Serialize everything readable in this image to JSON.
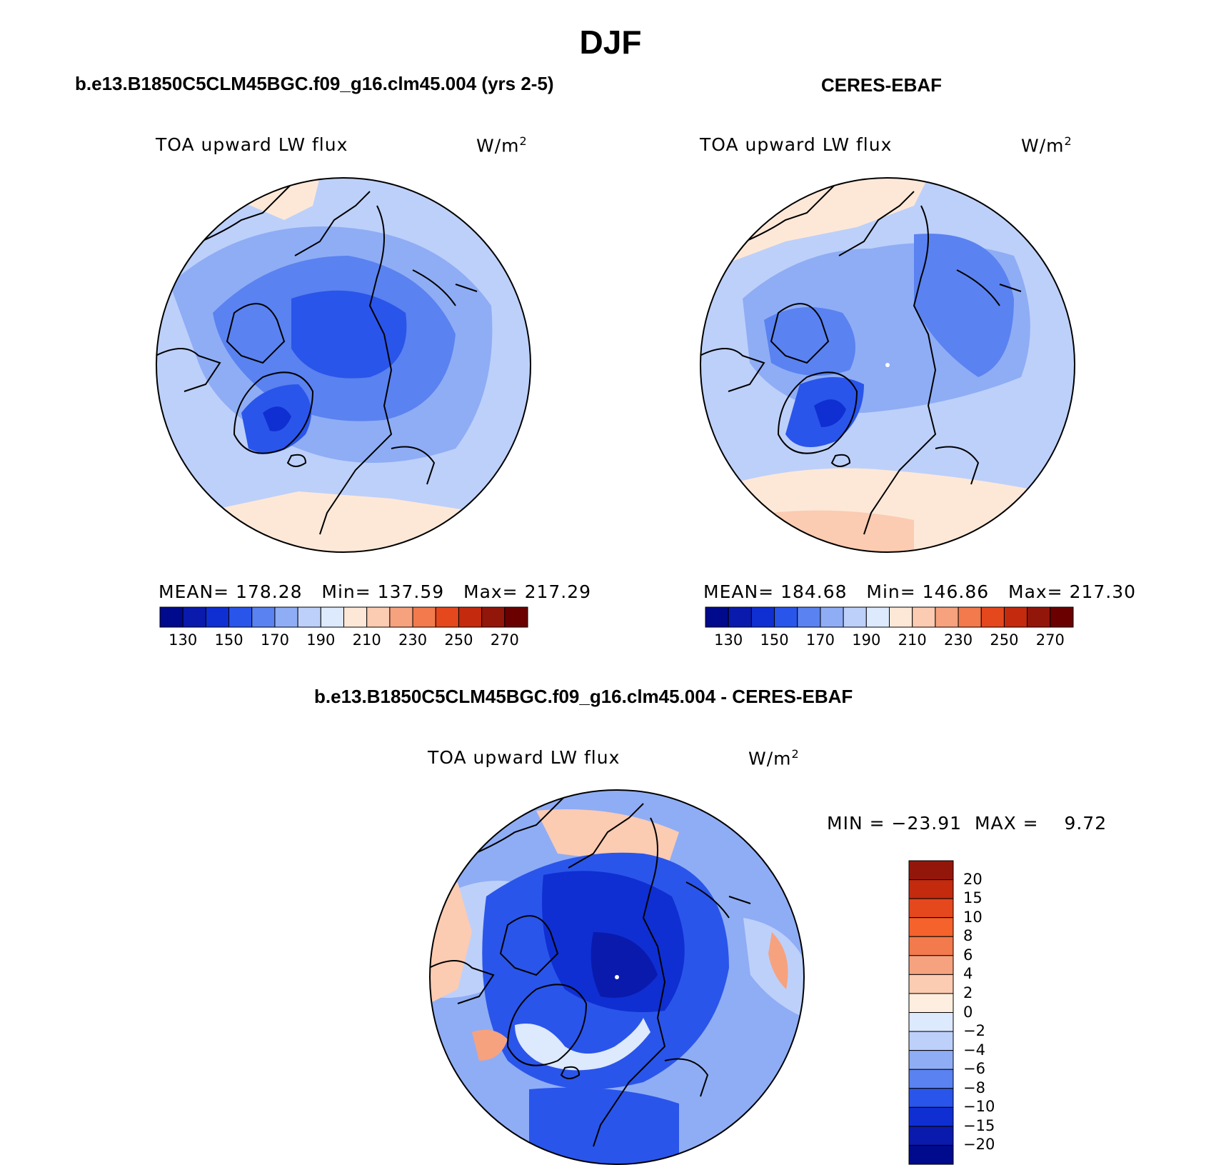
{
  "figure": {
    "title": "DJF"
  },
  "panels": [
    {
      "id": "model",
      "title": "b.e13.B1850C5CLM45BGC.f09_g16.clm45.004 (yrs 2-5)",
      "variable": "TOA upward LW flux",
      "units": "W/m",
      "units_sup": "2",
      "stats": {
        "mean_label": "MEAN=",
        "mean": "178.28",
        "min_label": "Min=",
        "min": "137.59",
        "max_label": "Max=",
        "max": "217.29"
      }
    },
    {
      "id": "obs",
      "title": "CERES-EBAF",
      "variable": "TOA upward LW flux",
      "units": "W/m",
      "units_sup": "2",
      "stats": {
        "mean_label": "MEAN=",
        "mean": "184.68",
        "min_label": "Min=",
        "min": "146.86",
        "max_label": "Max=",
        "max": "217.30"
      }
    },
    {
      "id": "diff",
      "title": "b.e13.B1850C5CLM45BGC.f09_g16.clm45.004 - CERES-EBAF",
      "variable": "TOA upward LW flux",
      "units": "W/m",
      "units_sup": "2",
      "stats": {
        "min_label": "MIN =",
        "min": "−23.91",
        "max_label": "MAX =",
        "max": "9.72"
      }
    }
  ],
  "abs_colorbar": {
    "colors": [
      "#000a8c",
      "#0a1aad",
      "#0f2fd2",
      "#2a55ea",
      "#5a82f0",
      "#8fadf5",
      "#bdd0fa",
      "#dde9fc",
      "#fde8d8",
      "#fbcbb2",
      "#f6a27e",
      "#f27a4c",
      "#e5481d",
      "#c42a0e",
      "#93160a",
      "#6b0000"
    ],
    "ticks": [
      "130",
      "150",
      "170",
      "190",
      "210",
      "230",
      "250",
      "270"
    ]
  },
  "diff_colorbar": {
    "colors_top_to_bottom": [
      "#93160a",
      "#c42a0e",
      "#e5481d",
      "#f5622b",
      "#f27a4c",
      "#f6a27e",
      "#fbcbb2",
      "#fdeedf",
      "#dde9fc",
      "#bdd0fa",
      "#8fadf5",
      "#5a82f0",
      "#2a55ea",
      "#0f2fd2",
      "#0a1aad",
      "#000a8c"
    ],
    "ticks_top_to_bottom": [
      "20",
      "15",
      "10",
      "8",
      "6",
      "4",
      "2",
      "0",
      "−2",
      "−4",
      "−6",
      "−8",
      "−10",
      "−15",
      "−20"
    ]
  },
  "colors": {
    "light_blue": "#bdd0fa",
    "mid_blue": "#8fadf5",
    "blue": "#5a82f0",
    "deep_blue": "#2a55ea",
    "dark_blue": "#0f2fd2",
    "peach": "#fde8d8",
    "salmon": "#fbcbb2"
  }
}
